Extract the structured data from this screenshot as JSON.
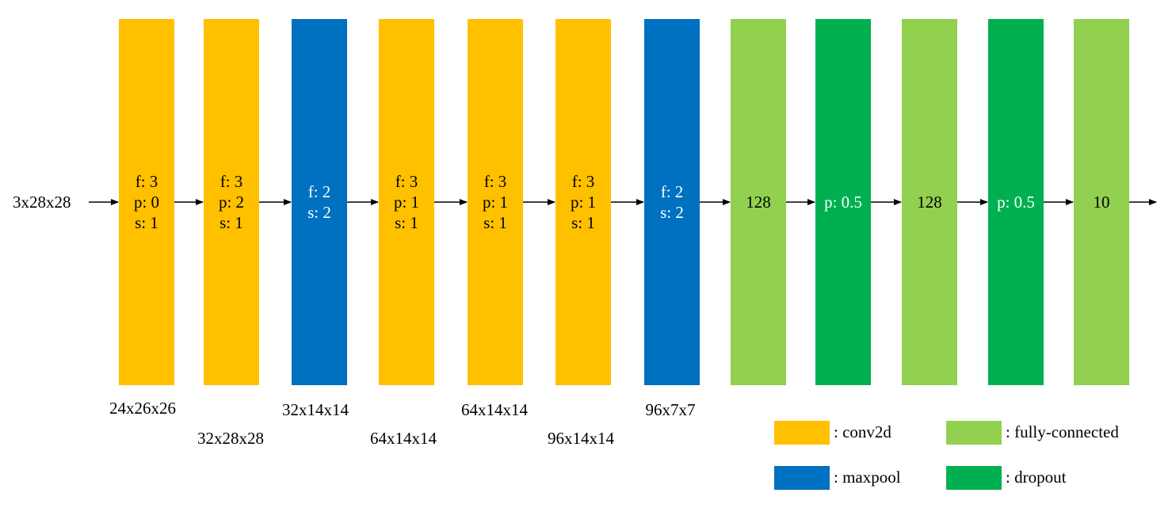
{
  "input": {
    "label": "3x28x28"
  },
  "layers": [
    {
      "type": "conv2d",
      "lines": [
        "f: 3",
        "p: 0",
        "s: 1"
      ],
      "output": "24x26x26"
    },
    {
      "type": "conv2d",
      "lines": [
        "f: 3",
        "p: 2",
        "s: 1"
      ],
      "output": "32x28x28"
    },
    {
      "type": "maxpool",
      "lines": [
        "f: 2",
        "s: 2"
      ],
      "output": "32x14x14"
    },
    {
      "type": "conv2d",
      "lines": [
        "f: 3",
        "p: 1",
        "s: 1"
      ],
      "output": "64x14x14"
    },
    {
      "type": "conv2d",
      "lines": [
        "f: 3",
        "p: 1",
        "s: 1"
      ],
      "output": "64x14x14"
    },
    {
      "type": "conv2d",
      "lines": [
        "f: 3",
        "p: 1",
        "s: 1"
      ],
      "output": "96x14x14"
    },
    {
      "type": "maxpool",
      "lines": [
        "f: 2",
        "s: 2"
      ],
      "output": "96x7x7"
    },
    {
      "type": "fc",
      "lines": [
        "128"
      ],
      "output": ""
    },
    {
      "type": "dropout",
      "lines": [
        "p: 0.5"
      ],
      "output": ""
    },
    {
      "type": "fc",
      "lines": [
        "128"
      ],
      "output": ""
    },
    {
      "type": "dropout",
      "lines": [
        "p: 0.5"
      ],
      "output": ""
    },
    {
      "type": "fc",
      "lines": [
        "10"
      ],
      "output": ""
    }
  ],
  "legend": [
    {
      "type": "conv2d",
      "label": ": conv2d"
    },
    {
      "type": "fc",
      "label": ": fully-connected"
    },
    {
      "type": "maxpool",
      "label": ": maxpool"
    },
    {
      "type": "dropout",
      "label": ": dropout"
    }
  ],
  "colors": {
    "conv2d": "#FFC000",
    "maxpool": "#0070C0",
    "fc": "#92D050",
    "dropout": "#00B050",
    "arrow": "#000000"
  }
}
